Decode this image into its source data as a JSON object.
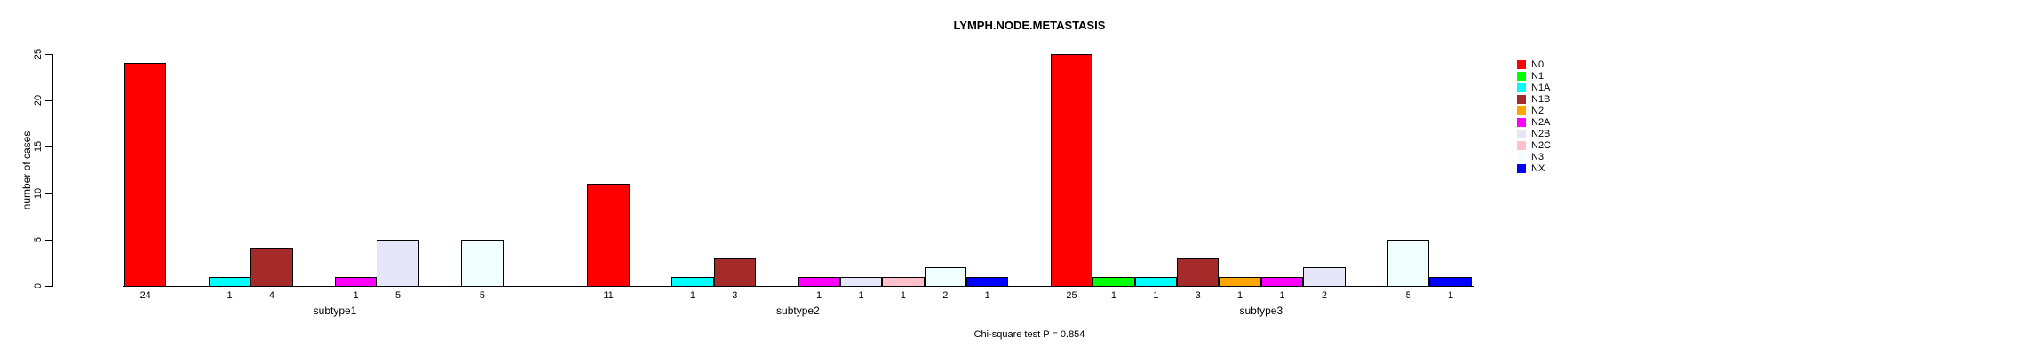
{
  "figure": {
    "title": "LYMPH.NODE.METASTASIS",
    "footnote": "Chi-square test P = 0.854"
  },
  "chart_data": {
    "type": "bar",
    "title": "LYMPH.NODE.METASTASIS",
    "xlabel": "",
    "ylabel": "number of cases",
    "ylim": [
      0,
      25
    ],
    "yticks": [
      0,
      5,
      10,
      15,
      20,
      25
    ],
    "grid": false,
    "legend_position": "right",
    "categories": [
      "N0",
      "N1",
      "N1A",
      "N1B",
      "N2",
      "N2A",
      "N2B",
      "N2C",
      "N3",
      "NX"
    ],
    "category_colors": {
      "N0": "#FF0000",
      "N1": "#00FF00",
      "N1A": "#00FFFF",
      "N1B": "#A52A2A",
      "N2": "#FFA500",
      "N2A": "#FF00FF",
      "N2B": "#E6E6FA",
      "N2C": "#FFC0CB",
      "N3": "#F0FFFF",
      "NX": "#0000FF"
    },
    "groups": [
      {
        "label": "subtype1",
        "values": [
          24,
          0,
          1,
          4,
          0,
          1,
          5,
          0,
          5,
          0
        ]
      },
      {
        "label": "subtype2",
        "values": [
          11,
          0,
          1,
          3,
          0,
          1,
          1,
          1,
          2,
          1
        ]
      },
      {
        "label": "subtype3",
        "values": [
          25,
          1,
          1,
          3,
          1,
          1,
          2,
          0,
          5,
          1
        ]
      }
    ],
    "bar_value_labels_shown": "nonzero_only",
    "footnote": "Chi-square test P = 0.854",
    "axis_color": "#000000",
    "background_color": "#FFFFFF"
  }
}
